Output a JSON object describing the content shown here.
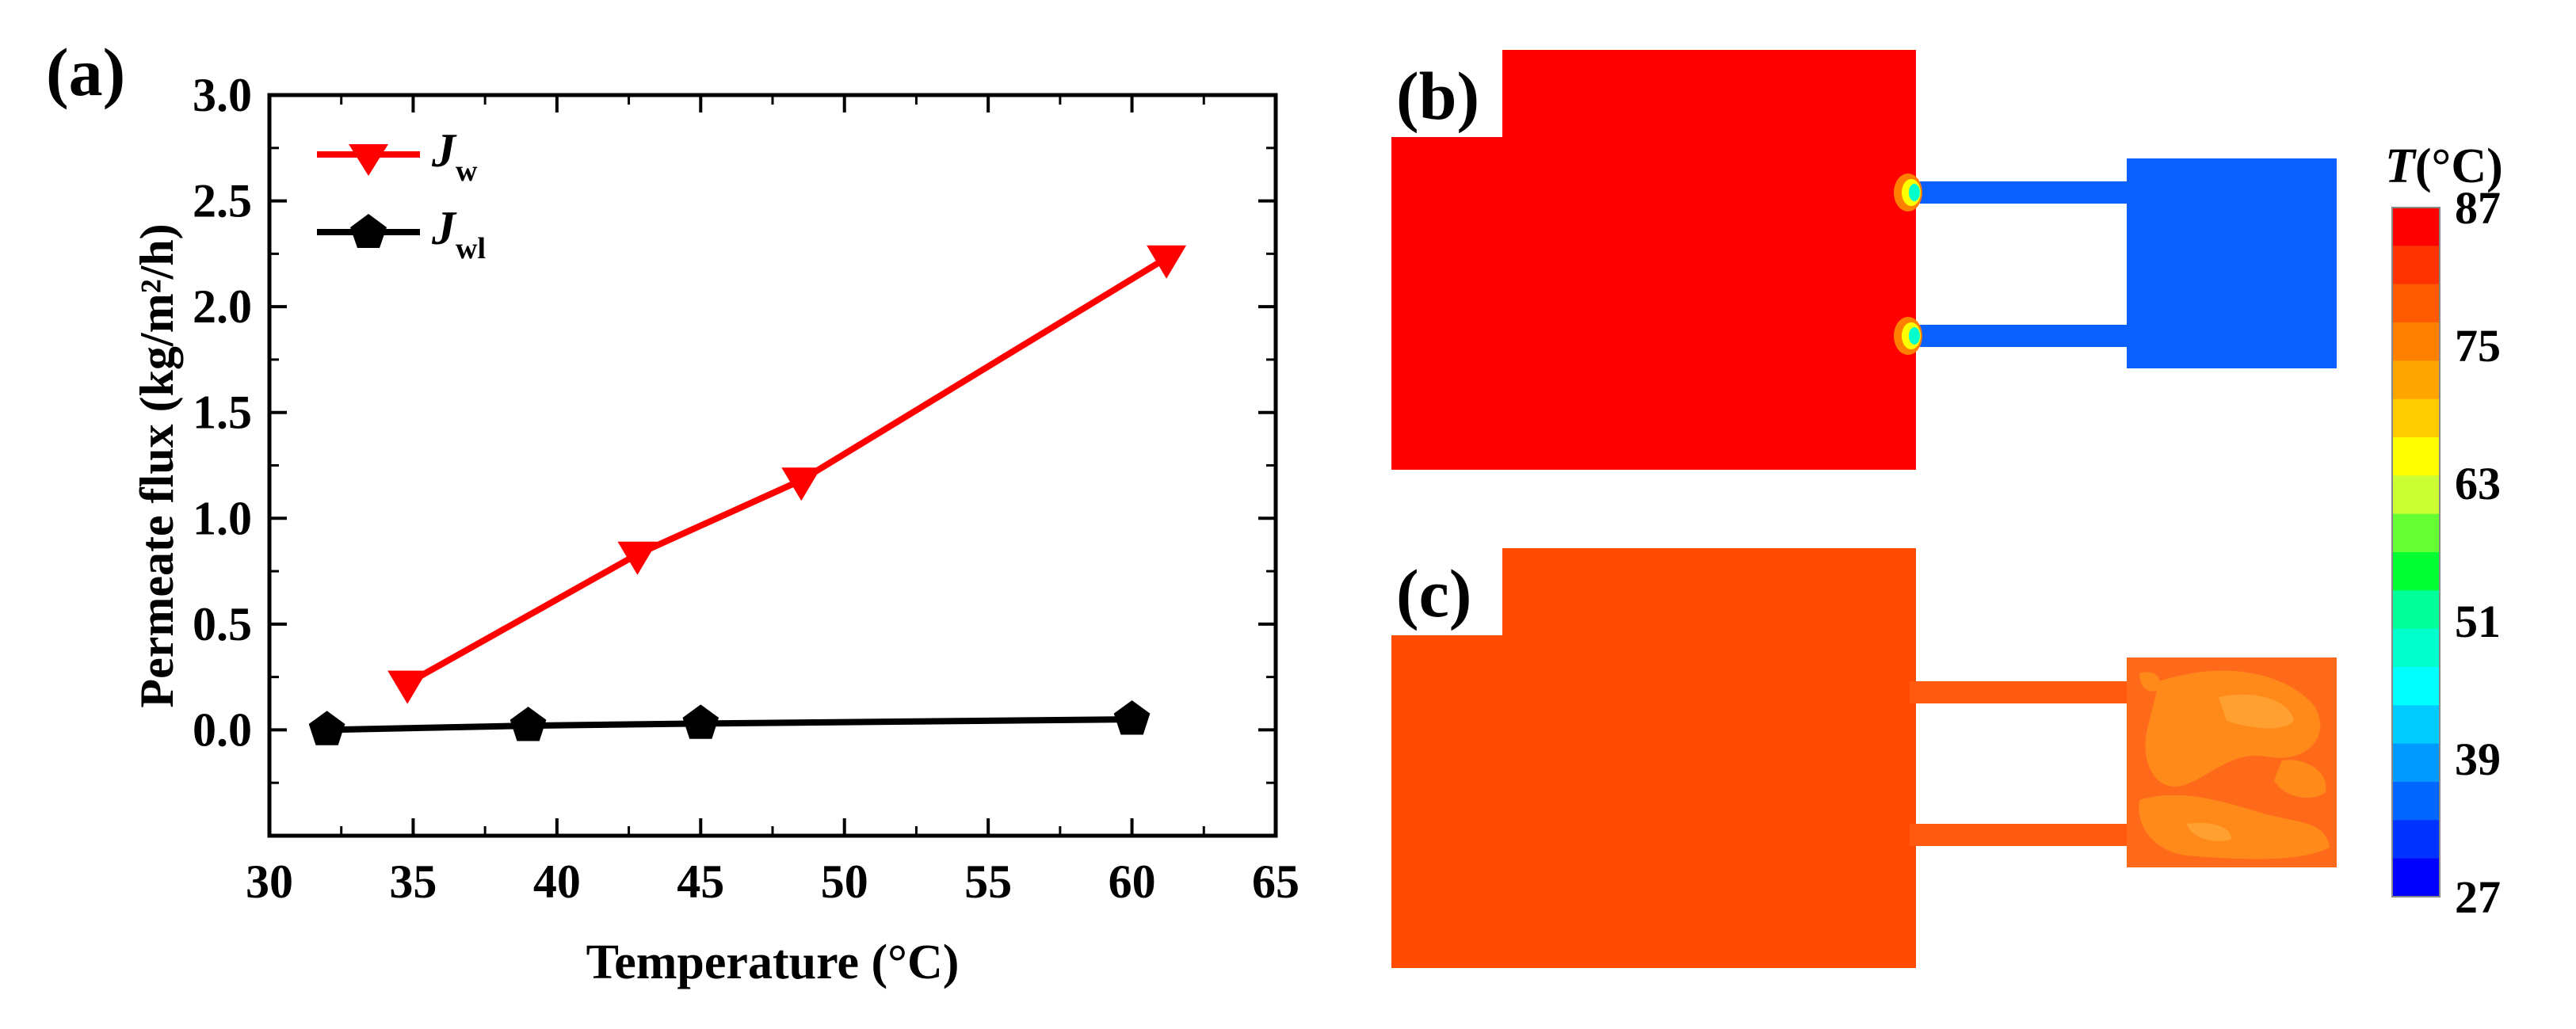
{
  "panel_labels": {
    "a": "(a)",
    "b": "(b)",
    "c": "(c)"
  },
  "chart_data": {
    "type": "line",
    "xlabel": "Temperature (°C)",
    "ylabel": "Permeate flux (kg/m²/h)",
    "xlim": [
      30,
      65
    ],
    "ylim": [
      -0.5,
      3.0
    ],
    "xticks": [
      30,
      35,
      40,
      45,
      50,
      55,
      60,
      65
    ],
    "yticks": [
      0.0,
      0.5,
      1.0,
      1.5,
      2.0,
      2.5,
      3.0
    ],
    "xtick_labels": [
      "30",
      "35",
      "40",
      "45",
      "50",
      "55",
      "60",
      "65"
    ],
    "ytick_labels": [
      "0.0",
      "0.5",
      "1.0",
      "1.5",
      "2.0",
      "2.5",
      "3.0"
    ],
    "grid": false,
    "legend": "top-left",
    "series": [
      {
        "name": "Jw",
        "symbol": "J",
        "subscript": "w",
        "color": "#ff0000",
        "marker": "triangle-down",
        "x": [
          34.8,
          42.8,
          48.5,
          61.2
        ],
        "y": [
          0.22,
          0.83,
          1.18,
          2.23
        ]
      },
      {
        "name": "Jwl",
        "symbol": "J",
        "subscript": "wl",
        "color": "#000000",
        "marker": "pentagon",
        "x": [
          32.0,
          39.0,
          45.0,
          60.0
        ],
        "y": [
          0.0,
          0.02,
          0.03,
          0.05
        ]
      }
    ]
  },
  "colorbar": {
    "title": "T(°C)",
    "title_symbol": "T",
    "title_unit": "(°C)",
    "min": 27,
    "max": 87,
    "ticks": [
      87,
      75,
      63,
      51,
      39,
      27
    ],
    "colors": [
      "#ff0000",
      "#ff3300",
      "#ff5a00",
      "#ff8000",
      "#ffa500",
      "#ffcc00",
      "#ffff00",
      "#ccff33",
      "#66ff33",
      "#00ff33",
      "#00ff99",
      "#00ffcc",
      "#00ffff",
      "#00ccff",
      "#0099ff",
      "#0066ff",
      "#0033ff",
      "#0000ff"
    ]
  },
  "contour_b": {
    "hot_color": "#ff0000",
    "cold_color": "#0a60ff"
  },
  "contour_c": {
    "hot_color": "#ff4a00",
    "cold_color": "#ff6a1a",
    "patch_color": "#ff8a1a"
  }
}
